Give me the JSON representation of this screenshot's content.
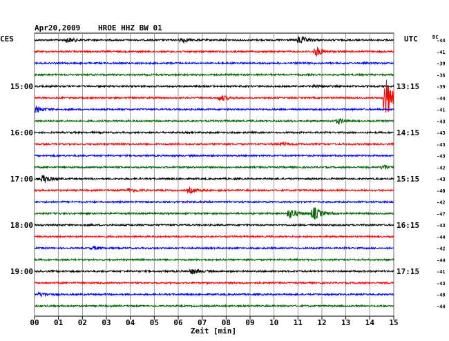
{
  "header": {
    "date": "Apr20,2009",
    "station": "HROE HHZ BW 01",
    "left_zone": "CES",
    "right_zone": "UTC",
    "dc_label": "DC"
  },
  "chart_data": {
    "type": "line",
    "title": "HROE HHZ BW 01",
    "date": "Apr20,2009",
    "xlabel": "Zeit [min]",
    "x_ticks": [
      "00",
      "01",
      "02",
      "03",
      "04",
      "05",
      "06",
      "07",
      "08",
      "09",
      "10",
      "11",
      "12",
      "13",
      "14",
      "15"
    ],
    "xlim": [
      0,
      15
    ],
    "grid": true,
    "trace_colors": [
      "#000000",
      "#ff0000",
      "#0000ff",
      "#006400"
    ],
    "traces": 24,
    "left_time_labels": [
      {
        "trace": 4,
        "text": "15:00"
      },
      {
        "trace": 8,
        "text": "16:00"
      },
      {
        "trace": 12,
        "text": "17:00"
      },
      {
        "trace": 16,
        "text": "18:00"
      },
      {
        "trace": 20,
        "text": "19:00"
      }
    ],
    "right_time_labels": [
      {
        "trace": 4,
        "text": "13:15"
      },
      {
        "trace": 8,
        "text": "14:15"
      },
      {
        "trace": 12,
        "text": "15:15"
      },
      {
        "trace": 16,
        "text": "16:15"
      },
      {
        "trace": 20,
        "text": "17:15"
      }
    ],
    "dc_offsets": [
      -44,
      -41,
      -39,
      -36,
      -39,
      -44,
      -41,
      -43,
      -43,
      -43,
      -43,
      -42,
      -43,
      -40,
      -42,
      -47,
      -43,
      -44,
      -42,
      -44,
      -41,
      -43,
      -48,
      -44
    ],
    "events": [
      {
        "trace": 0,
        "minute": 1.4,
        "amplitude": 0.5
      },
      {
        "trace": 0,
        "minute": 6.2,
        "amplitude": 0.5
      },
      {
        "trace": 0,
        "minute": 11.1,
        "amplitude": 0.8
      },
      {
        "trace": 1,
        "minute": 11.8,
        "amplitude": 0.9
      },
      {
        "trace": 4,
        "minute": 11.8,
        "amplitude": 0.3
      },
      {
        "trace": 5,
        "minute": 7.8,
        "amplitude": 0.6
      },
      {
        "trace": 5,
        "minute": 14.7,
        "amplitude": 4.0
      },
      {
        "trace": 6,
        "minute": 0.1,
        "amplitude": 0.6
      },
      {
        "trace": 7,
        "minute": 12.7,
        "amplitude": 0.5
      },
      {
        "trace": 9,
        "minute": 10.4,
        "amplitude": 0.3
      },
      {
        "trace": 11,
        "minute": 14.6,
        "amplitude": 0.5
      },
      {
        "trace": 12,
        "minute": 0.4,
        "amplitude": 0.8
      },
      {
        "trace": 13,
        "minute": 4.0,
        "amplitude": 0.4
      },
      {
        "trace": 13,
        "minute": 6.5,
        "amplitude": 0.5
      },
      {
        "trace": 15,
        "minute": 10.7,
        "amplitude": 1.0
      },
      {
        "trace": 15,
        "minute": 11.7,
        "amplitude": 1.3
      },
      {
        "trace": 18,
        "minute": 2.5,
        "amplitude": 0.3
      },
      {
        "trace": 20,
        "minute": 6.6,
        "amplitude": 0.5
      },
      {
        "trace": 22,
        "minute": 0.3,
        "amplitude": 0.4
      }
    ]
  }
}
